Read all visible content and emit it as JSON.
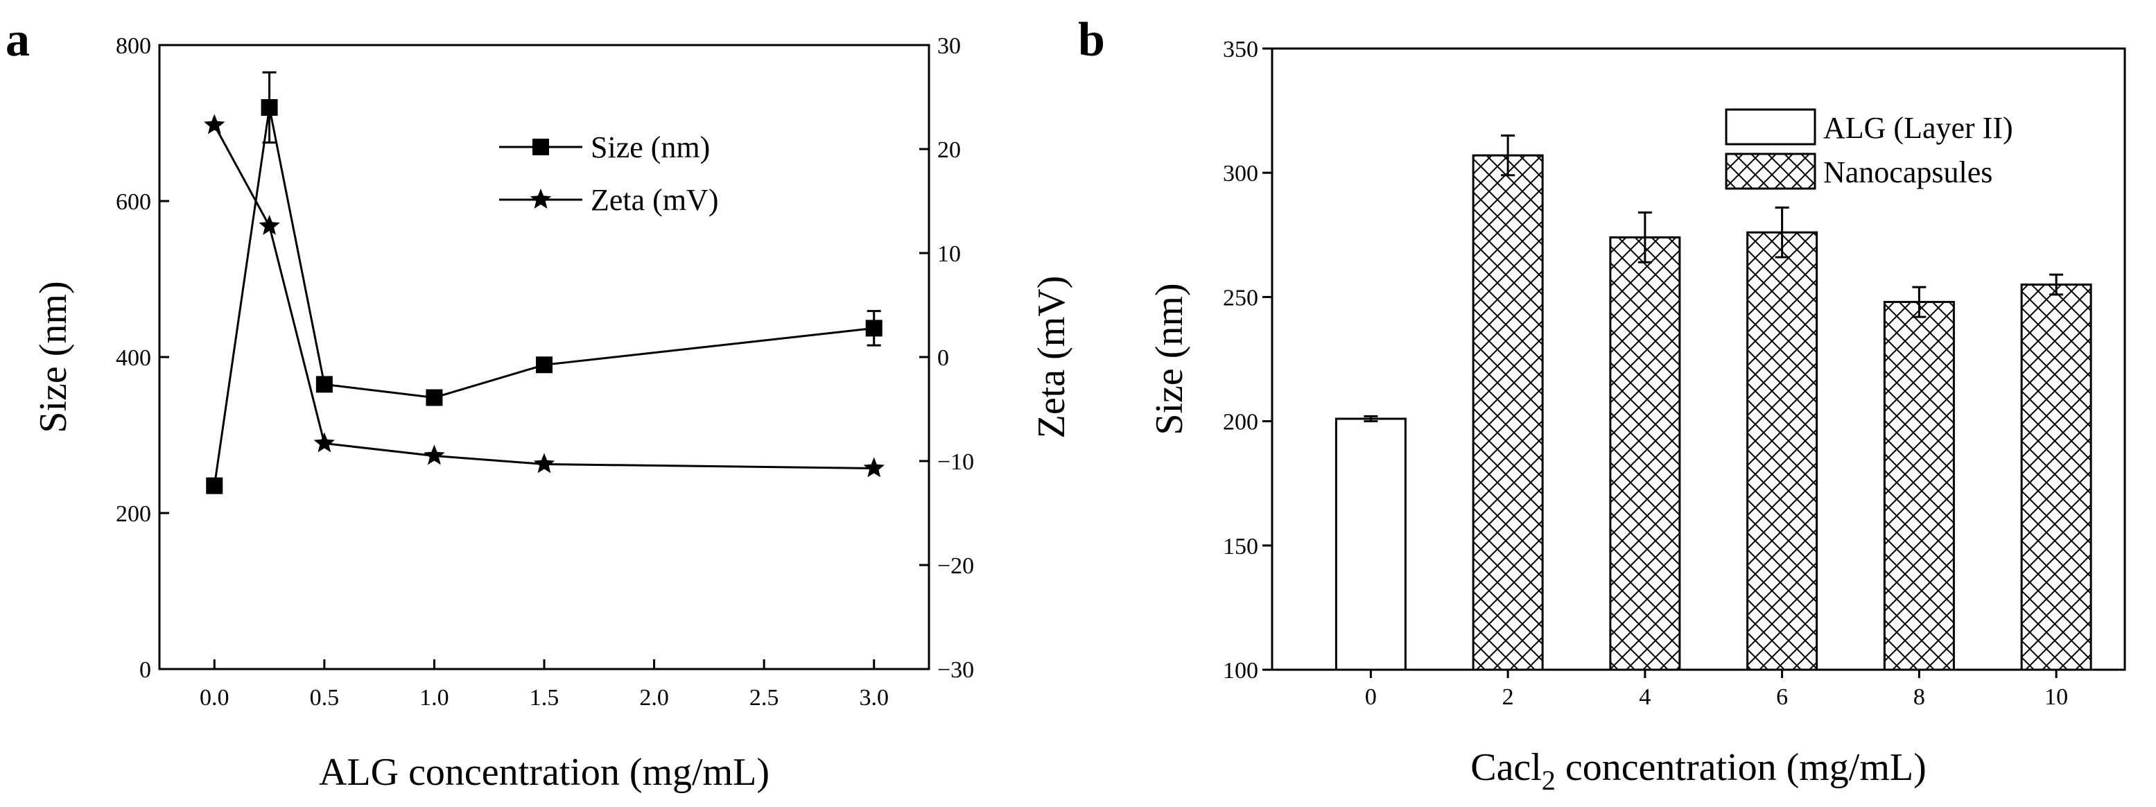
{
  "chart_data": [
    {
      "panel": "a",
      "type": "line",
      "title": "",
      "xlabel": "ALG concentration (mg/mL)",
      "ylabel": "Size (nm)",
      "y2label": "Zeta (mV)",
      "xlim": [
        -0.25,
        3.25
      ],
      "ylim": [
        0,
        800
      ],
      "y2lim": [
        -30,
        30
      ],
      "xticks": [
        "0.0",
        "0.5",
        "1.0",
        "1.5",
        "2.0",
        "2.5",
        "3.0"
      ],
      "yticks": [
        "0",
        "200",
        "400",
        "600",
        "800"
      ],
      "y2ticks": [
        "−30",
        "−20",
        "−10",
        "0",
        "10",
        "20",
        "30"
      ],
      "legend_position": "top-center",
      "grid": false,
      "series": [
        {
          "name": "Size (nm)",
          "axis": "left",
          "marker": "square",
          "x": [
            0,
            0.25,
            0.5,
            1.0,
            1.5,
            3.0
          ],
          "values": [
            235,
            720,
            365,
            348,
            390,
            437
          ],
          "errors": [
            0,
            45,
            0,
            0,
            0,
            22
          ]
        },
        {
          "name": "Zeta (mV)",
          "axis": "right",
          "marker": "star",
          "x": [
            0,
            0.25,
            0.5,
            1.0,
            1.5,
            3.0
          ],
          "values": [
            22.3,
            12.6,
            -8.3,
            -9.5,
            -10.3,
            -10.7
          ]
        }
      ]
    },
    {
      "panel": "b",
      "type": "bar",
      "title": "",
      "xlabel": "Cacl",
      "xlabel_sub": "2",
      "xlabel_rest": " concentration (mg/mL)",
      "ylabel": "Size (nm)",
      "ylim": [
        100,
        350
      ],
      "yticks": [
        "100",
        "150",
        "200",
        "250",
        "300",
        "350"
      ],
      "categories": [
        "0",
        "2",
        "4",
        "6",
        "8",
        "10"
      ],
      "legend_position": "top-right",
      "grid": false,
      "series": [
        {
          "name": "ALG (Layer II)",
          "pattern": "plain",
          "values": [
            201,
            null,
            null,
            null,
            null,
            null
          ],
          "errors": [
            1,
            null,
            null,
            null,
            null,
            null
          ]
        },
        {
          "name": "Nanocapsules",
          "pattern": "crosshatch",
          "values": [
            null,
            307,
            274,
            276,
            248,
            255
          ],
          "errors": [
            null,
            8,
            10,
            10,
            6,
            4
          ]
        }
      ]
    }
  ]
}
